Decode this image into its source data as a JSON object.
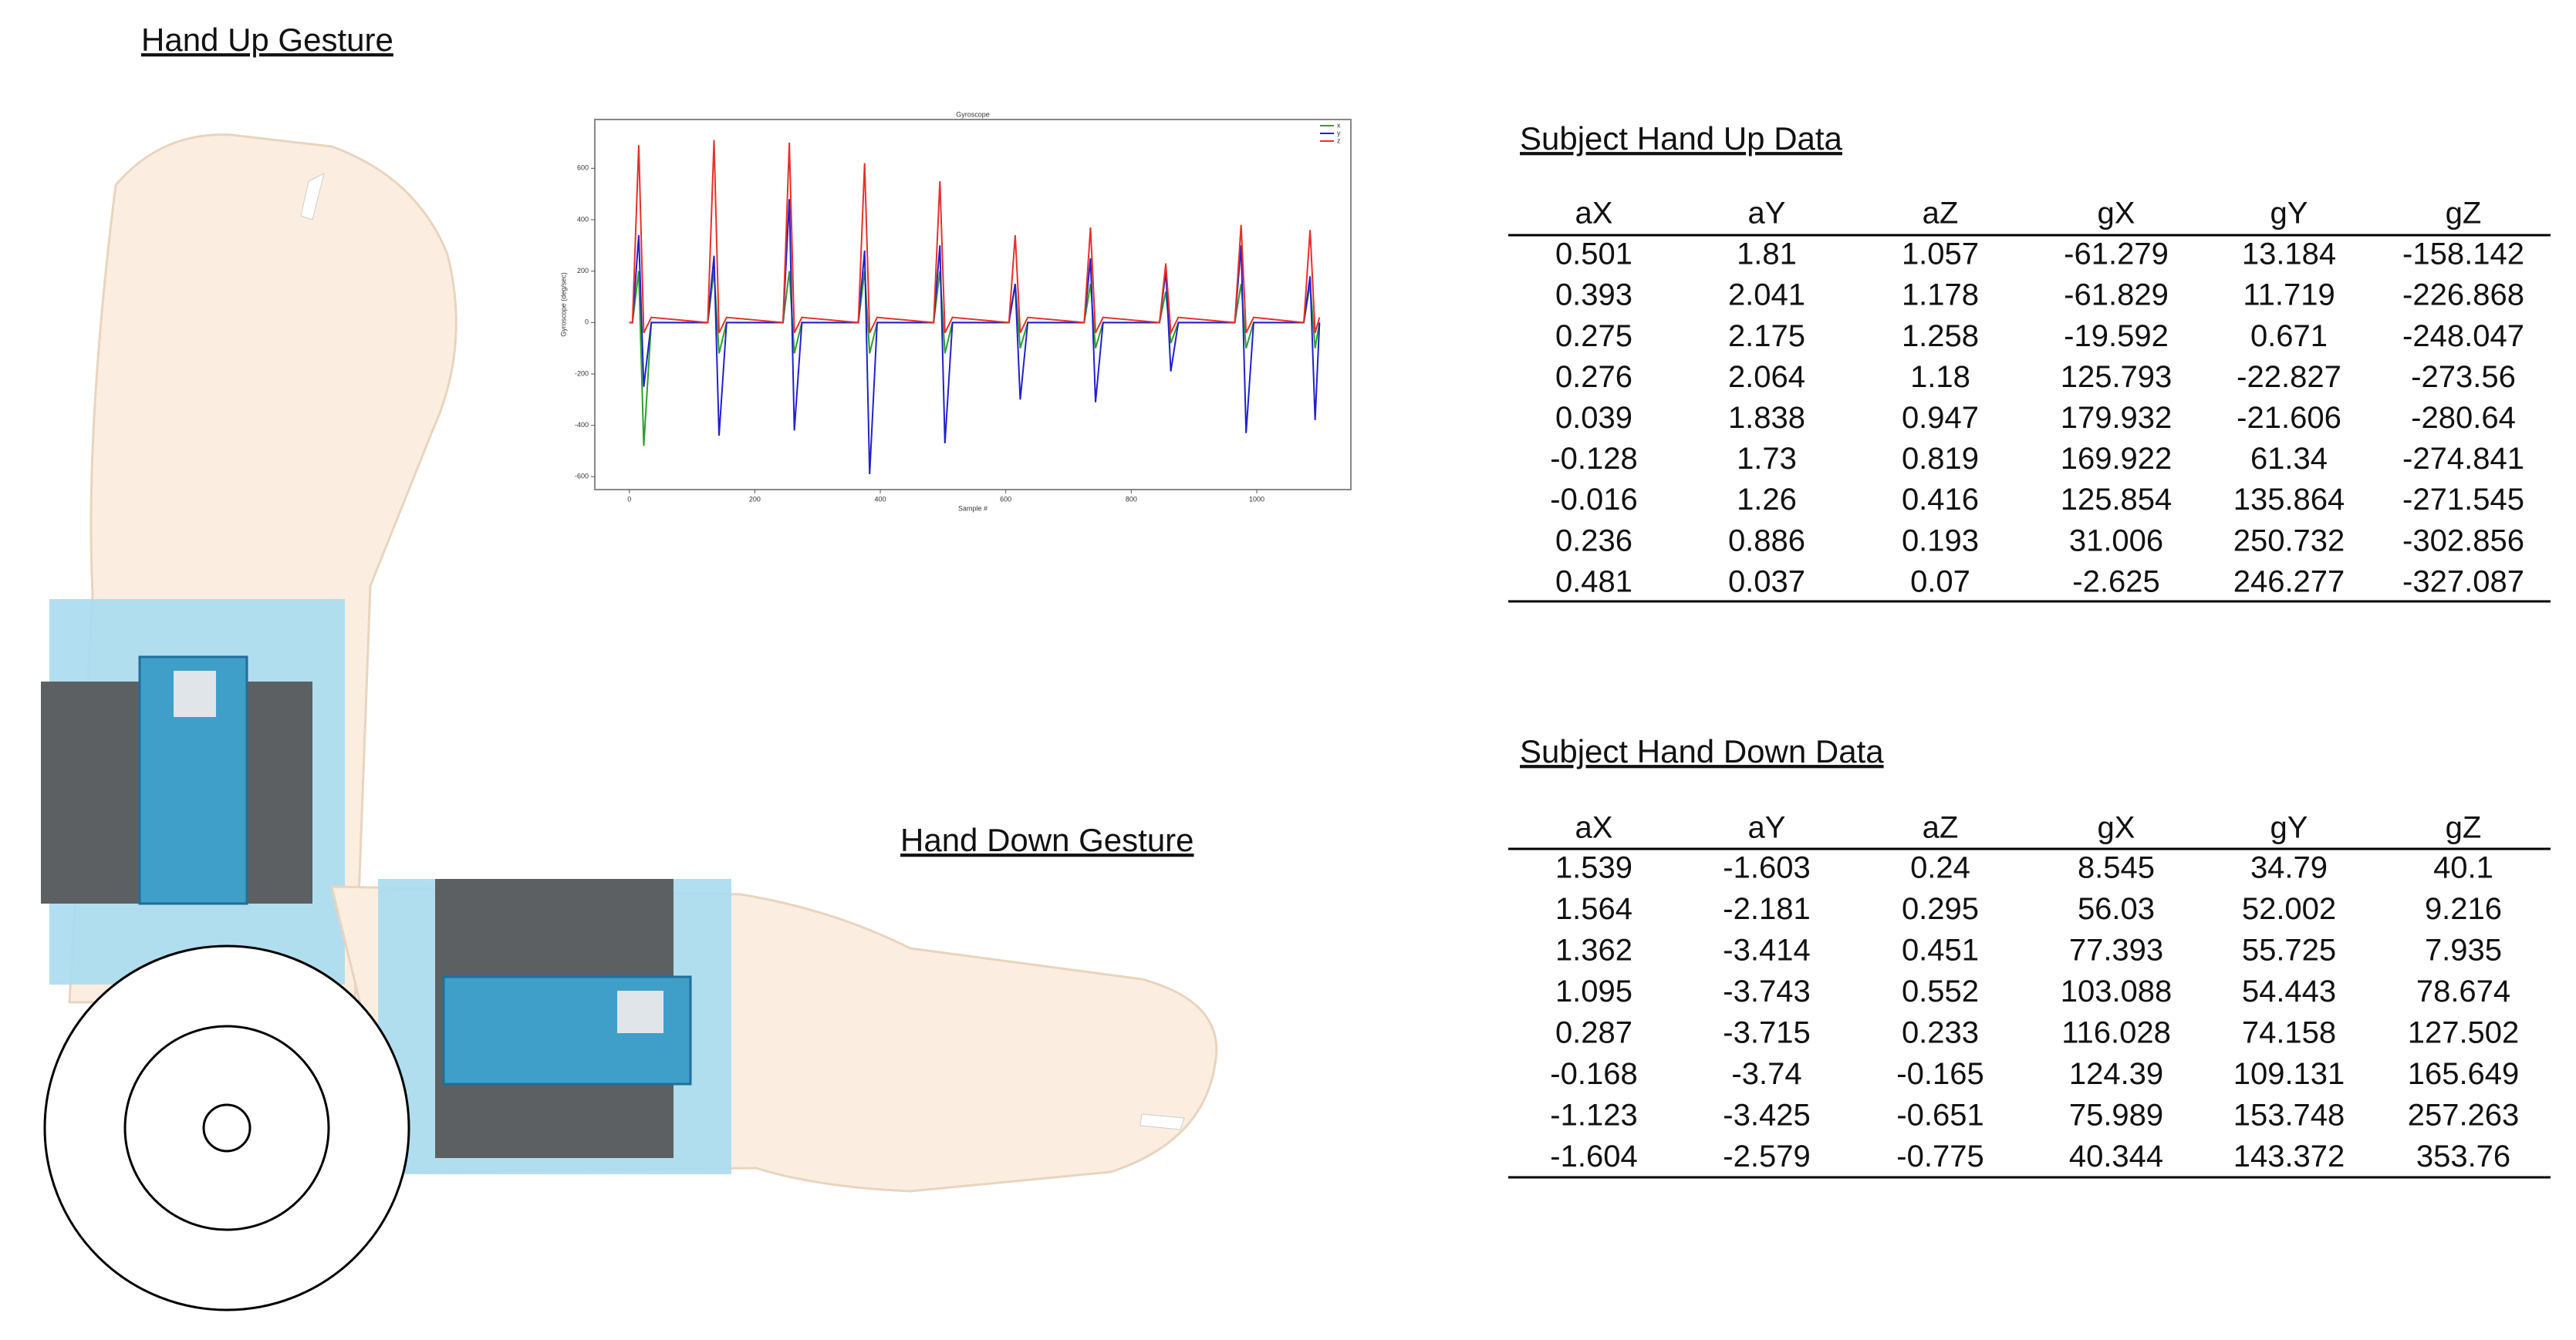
{
  "hand_up_title": "Hand Up Gesture",
  "hand_down_title": "Hand Down Gesture",
  "gyro_chart": {
    "type": "line",
    "title": "Gyroscope",
    "xlabel": "Sample #",
    "ylabel": "Gyroscope (deg/sec)",
    "x": [
      0,
      5,
      15,
      23,
      35,
      125,
      135,
      143,
      155,
      245,
      255,
      263,
      275,
      365,
      375,
      383,
      395,
      485,
      495,
      503,
      515,
      605,
      615,
      623,
      635,
      725,
      735,
      743,
      755,
      845,
      855,
      863,
      875,
      965,
      975,
      983,
      995,
      1075,
      1085,
      1093,
      1100
    ],
    "series": [
      {
        "name": "x",
        "color": "#2ca02c",
        "values": [
          0,
          0,
          200,
          -480,
          0,
          0,
          200,
          -120,
          0,
          0,
          200,
          -120,
          0,
          0,
          200,
          -120,
          0,
          0,
          200,
          -120,
          0,
          0,
          150,
          -100,
          0,
          0,
          150,
          -100,
          0,
          0,
          120,
          -80,
          0,
          0,
          150,
          -100,
          0,
          0,
          150,
          -100,
          0
        ]
      },
      {
        "name": "y",
        "color": "#2020d0",
        "values": [
          0,
          0,
          340,
          -250,
          0,
          0,
          260,
          -440,
          0,
          0,
          480,
          -420,
          0,
          0,
          280,
          -590,
          0,
          0,
          300,
          -470,
          0,
          0,
          150,
          -300,
          0,
          0,
          250,
          -310,
          0,
          0,
          200,
          -190,
          0,
          0,
          300,
          -430,
          0,
          0,
          180,
          -380,
          0
        ]
      },
      {
        "name": "z",
        "color": "#e8302a",
        "values": [
          0,
          0,
          690,
          -40,
          20,
          0,
          710,
          -40,
          20,
          0,
          700,
          -40,
          20,
          0,
          620,
          -40,
          20,
          0,
          550,
          -40,
          20,
          0,
          340,
          -40,
          20,
          0,
          370,
          -40,
          20,
          0,
          230,
          -40,
          20,
          0,
          380,
          -40,
          20,
          0,
          360,
          -40,
          20
        ]
      }
    ],
    "xlim": [
      -55,
      1150
    ],
    "ylim": [
      -650,
      790
    ],
    "xticks": [
      0,
      200,
      400,
      600,
      800,
      1000
    ],
    "yticks": [
      -600,
      -400,
      -200,
      0,
      200,
      400,
      600
    ],
    "legend": "upper right"
  },
  "up_table": {
    "title": "Subject Hand Up Data",
    "header": [
      "aX",
      "aY",
      "aZ",
      "gX",
      "gY",
      "gZ"
    ],
    "rows": [
      [
        0.501,
        1.81,
        1.057,
        -61.279,
        13.184,
        -158.142
      ],
      [
        0.393,
        2.041,
        1.178,
        -61.829,
        11.719,
        -226.868
      ],
      [
        0.275,
        2.175,
        1.258,
        -19.592,
        0.671,
        -248.047
      ],
      [
        0.276,
        2.064,
        1.18,
        125.793,
        -22.827,
        -273.56
      ],
      [
        0.039,
        1.838,
        0.947,
        179.932,
        -21.606,
        -280.64
      ],
      [
        -0.128,
        1.73,
        0.819,
        169.922,
        61.34,
        -274.841
      ],
      [
        -0.016,
        1.26,
        0.416,
        125.854,
        135.864,
        -271.545
      ],
      [
        0.236,
        0.886,
        0.193,
        31.006,
        250.732,
        -302.856
      ],
      [
        0.481,
        0.037,
        0.07,
        -2.625,
        246.277,
        -327.087
      ]
    ]
  },
  "down_table": {
    "title": "Subject Hand Down Data",
    "header": [
      "aX",
      "aY",
      "aZ",
      "gX",
      "gY",
      "gZ"
    ],
    "rows": [
      [
        1.539,
        -1.603,
        0.24,
        8.545,
        34.79,
        40.1
      ],
      [
        1.564,
        -2.181,
        0.295,
        56.03,
        52.002,
        9.216
      ],
      [
        1.362,
        -3.414,
        0.451,
        77.393,
        55.725,
        7.935
      ],
      [
        1.095,
        -3.743,
        0.552,
        103.088,
        54.443,
        78.674
      ],
      [
        0.287,
        -3.715,
        0.233,
        116.028,
        74.158,
        127.502
      ],
      [
        -0.168,
        -3.74,
        -0.165,
        124.39,
        109.131,
        165.649
      ],
      [
        -1.123,
        -3.425,
        -0.651,
        75.989,
        153.748,
        257.263
      ],
      [
        -1.604,
        -2.579,
        -0.775,
        40.344,
        143.372,
        353.76
      ]
    ]
  }
}
